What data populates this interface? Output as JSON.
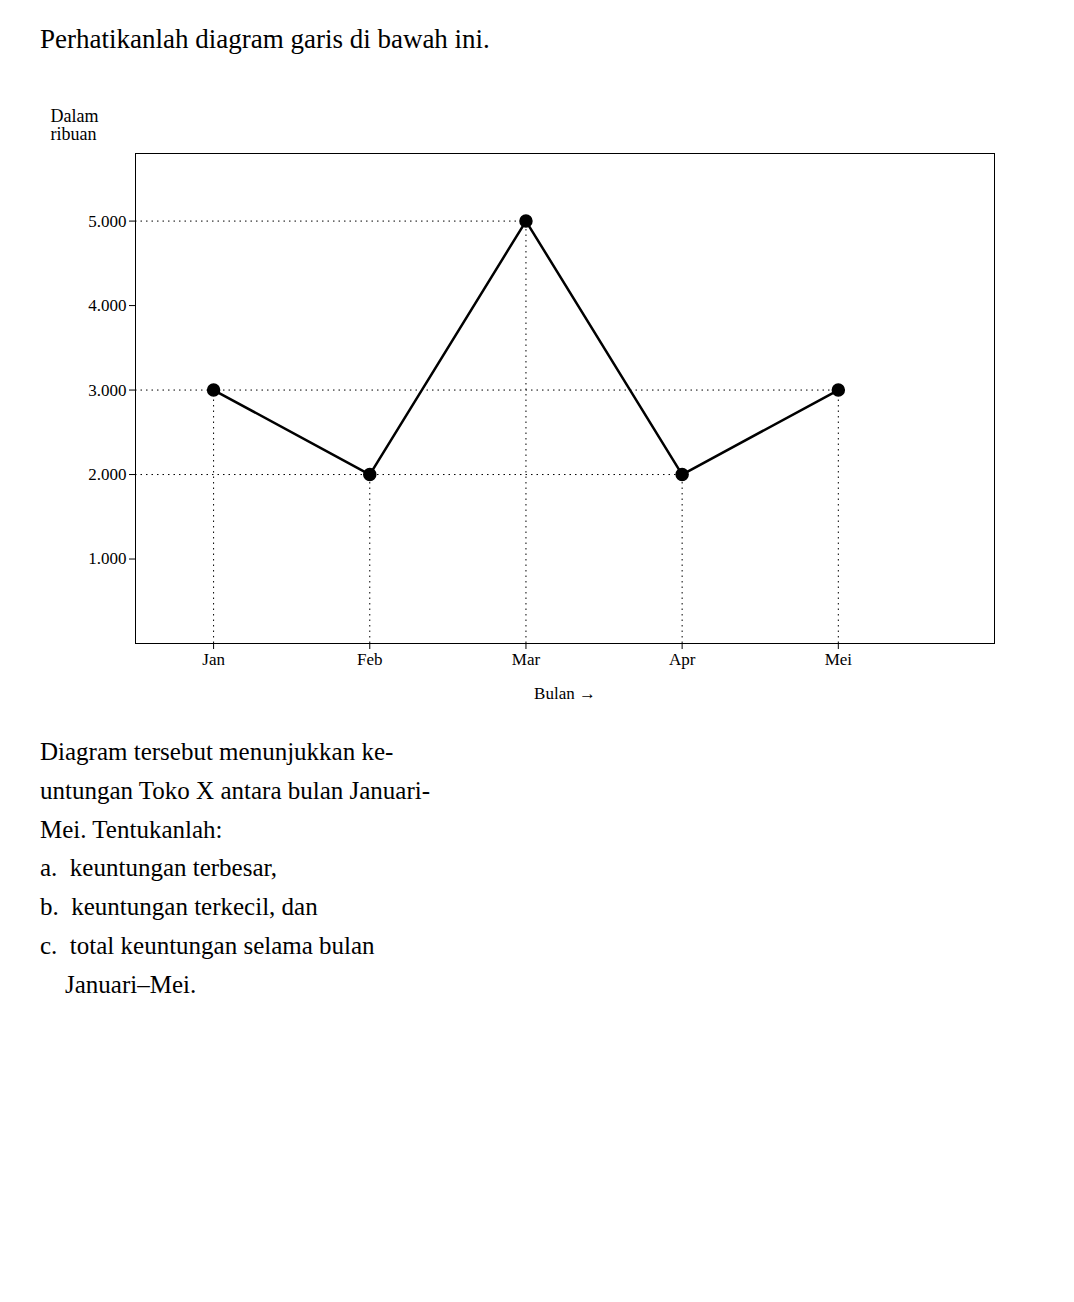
{
  "chart_data": {
    "type": "line",
    "title": "Perhatikanlah diagram garis di bawah ini.",
    "xlabel": "Bulan",
    "ylabel": "Dalam\nribuan",
    "categories": [
      "Jan",
      "Feb",
      "Mar",
      "Apr",
      "Mei"
    ],
    "values": [
      3000,
      2000,
      5000,
      2000,
      3000
    ],
    "color": "#000000",
    "marker": "circle",
    "line_style": "solid",
    "ylim": [
      0,
      5800
    ],
    "yticks": [
      {
        "value": 1000,
        "label": "1.000"
      },
      {
        "value": 2000,
        "label": "2.000"
      },
      {
        "value": 3000,
        "label": "3.000"
      },
      {
        "value": 4000,
        "label": "4.000"
      },
      {
        "value": 5000,
        "label": "5.000"
      }
    ],
    "grid": false,
    "annotations": [
      "Diagram tersebut menunjukkan ke-",
      "untungan Toko X antara bulan Januari-",
      "Mei. Tentukanlah:",
      "a.  keuntungan terbesar,",
      "b.  keuntungan terkecil, dan",
      "c.  total keuntungan selama bulan",
      "    Januari–Mei."
    ]
  }
}
